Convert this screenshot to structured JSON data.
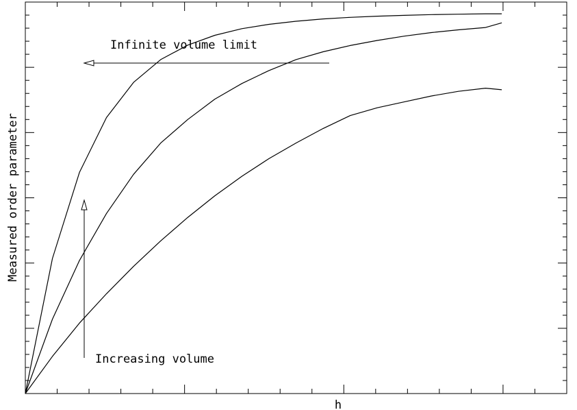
{
  "chart_data": {
    "type": "line",
    "xlabel": "h",
    "ylabel": "Measured order parameter",
    "xlim": [
      0,
      1
    ],
    "ylim": [
      0,
      1
    ],
    "grid": false,
    "series": [
      {
        "x": [
          0,
          0.05,
          0.1,
          0.15,
          0.2,
          0.25,
          0.3,
          0.35,
          0.4,
          0.45,
          0.5,
          0.55,
          0.6,
          0.65,
          0.7,
          0.75,
          0.8,
          0.85,
          0.88
        ],
        "values": [
          0,
          0.345,
          0.565,
          0.705,
          0.795,
          0.853,
          0.89,
          0.915,
          0.932,
          0.943,
          0.951,
          0.957,
          0.961,
          0.964,
          0.966,
          0.968,
          0.969,
          0.97,
          0.97
        ]
      },
      {
        "x": [
          0,
          0.05,
          0.1,
          0.15,
          0.2,
          0.25,
          0.3,
          0.35,
          0.4,
          0.45,
          0.5,
          0.55,
          0.6,
          0.65,
          0.7,
          0.75,
          0.8,
          0.85,
          0.88
        ],
        "values": [
          0,
          0.19,
          0.34,
          0.46,
          0.56,
          0.64,
          0.7,
          0.752,
          0.792,
          0.825,
          0.853,
          0.873,
          0.889,
          0.902,
          0.913,
          0.922,
          0.929,
          0.935,
          0.947
        ]
      },
      {
        "x": [
          0,
          0.05,
          0.1,
          0.15,
          0.2,
          0.25,
          0.3,
          0.35,
          0.4,
          0.45,
          0.5,
          0.55,
          0.6,
          0.65,
          0.7,
          0.75,
          0.8,
          0.85,
          0.88
        ],
        "values": [
          0,
          0.095,
          0.18,
          0.255,
          0.325,
          0.39,
          0.45,
          0.505,
          0.555,
          0.6,
          0.64,
          0.677,
          0.71,
          0.73,
          0.745,
          0.76,
          0.772,
          0.78,
          0.776
        ]
      }
    ],
    "annotations": [
      {
        "id": "infinite",
        "text": "Infinite volume limit",
        "arrow": "left"
      },
      {
        "id": "increasing",
        "text": "Increasing volume",
        "arrow": "up"
      }
    ]
  }
}
